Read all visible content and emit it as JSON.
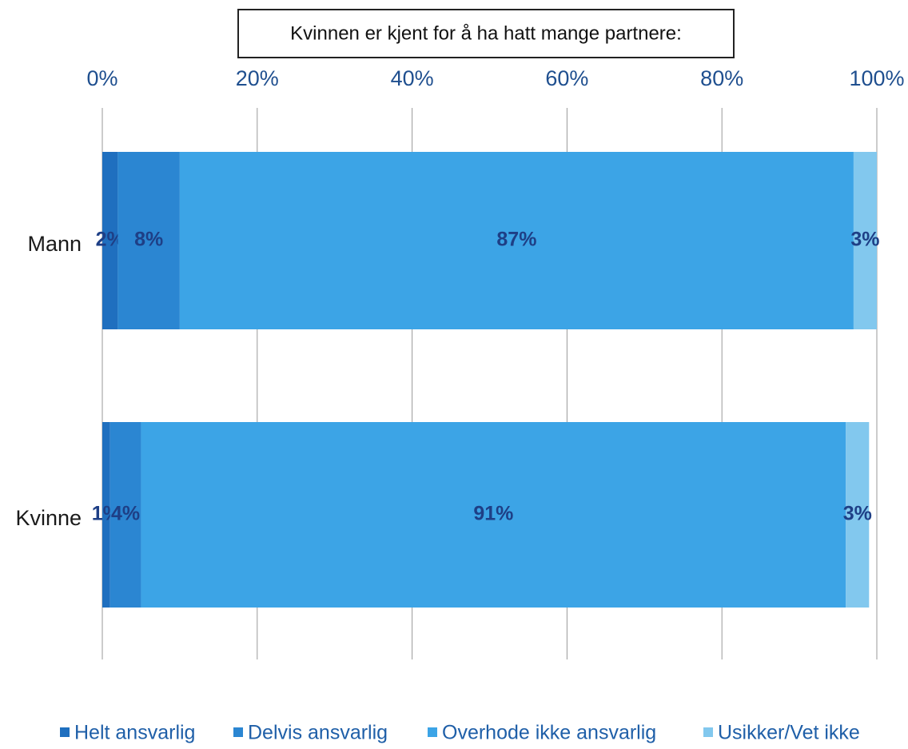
{
  "chart_data": {
    "type": "stacked_barh",
    "title": "Kvinnen er kjent for å ha hatt mange partnere:",
    "categories": [
      "Mann",
      "Kvinne"
    ],
    "series": [
      {
        "name": "Helt ansvarlig",
        "color": "#1f6fbf",
        "values": [
          2,
          1
        ],
        "value_labels": [
          "2%",
          "1%"
        ]
      },
      {
        "name": "Delvis ansvarlig",
        "color": "#2b86d2",
        "values": [
          8,
          4
        ],
        "value_labels": [
          "8%",
          "4%"
        ]
      },
      {
        "name": "Overhode ikke ansvarlig",
        "color": "#3ca4e6",
        "values": [
          87,
          91
        ],
        "value_labels": [
          "87%",
          "91%"
        ]
      },
      {
        "name": "Usikker/Vet ikke",
        "color": "#82c8ee",
        "values": [
          3,
          3
        ],
        "value_labels": [
          "3%",
          "3%"
        ]
      }
    ],
    "xlim": [
      0,
      100
    ],
    "xticks": [
      {
        "value": 0,
        "label": "0%"
      },
      {
        "value": 20,
        "label": "20%"
      },
      {
        "value": 40,
        "label": "40%"
      },
      {
        "value": 60,
        "label": "60%"
      },
      {
        "value": 80,
        "label": "80%"
      },
      {
        "value": 100,
        "label": "100%"
      }
    ],
    "grid": true,
    "legend": "bottom"
  }
}
